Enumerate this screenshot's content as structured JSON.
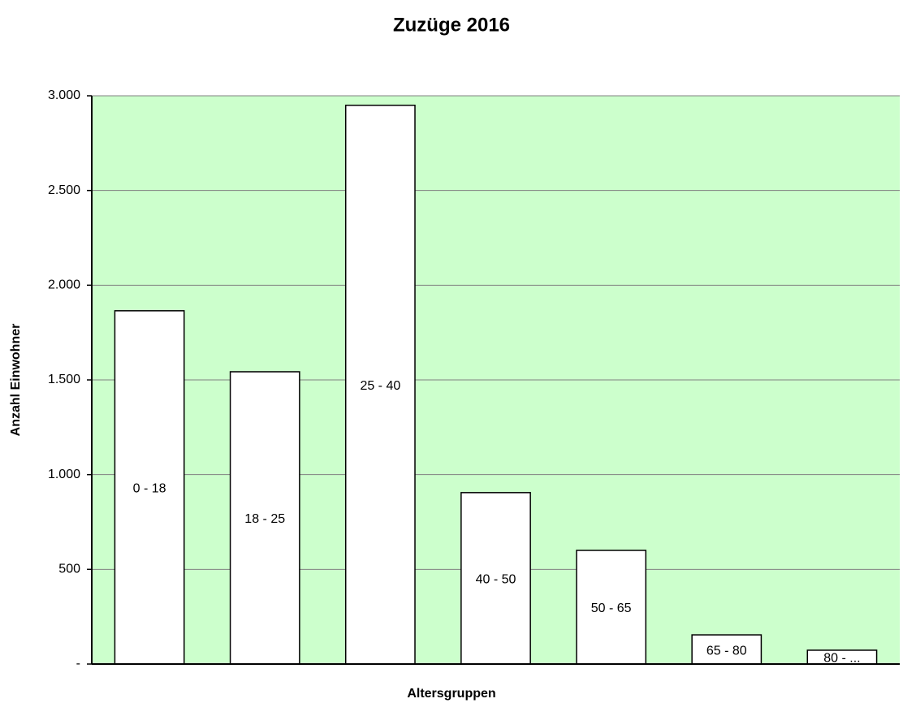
{
  "chart_data": {
    "type": "bar",
    "title": "Zuzüge 2016",
    "x_label": "Altersgruppen",
    "y_label": "Anzahl Einwohner",
    "categories": [
      "0 - 18",
      "18 - 25",
      "25 - 40",
      "40 - 50",
      "50 - 65",
      "65 - 80",
      "80 - ..."
    ],
    "values": [
      1865,
      1543,
      2950,
      905,
      600,
      154,
      73
    ],
    "color": "#ffffff",
    "background": "#ccffcc",
    "ylim": [
      0,
      3000
    ],
    "yticks": [
      {
        "value": 0,
        "label": "-"
      },
      500,
      {
        "value": 1000,
        "label": "1.000"
      },
      {
        "value": 1500,
        "label": "1.500"
      },
      {
        "value": 2000,
        "label": "2.000"
      },
      {
        "value": 2500,
        "label": "2.500"
      },
      {
        "value": 3000,
        "label": "3.000"
      }
    ],
    "grid": true
  }
}
